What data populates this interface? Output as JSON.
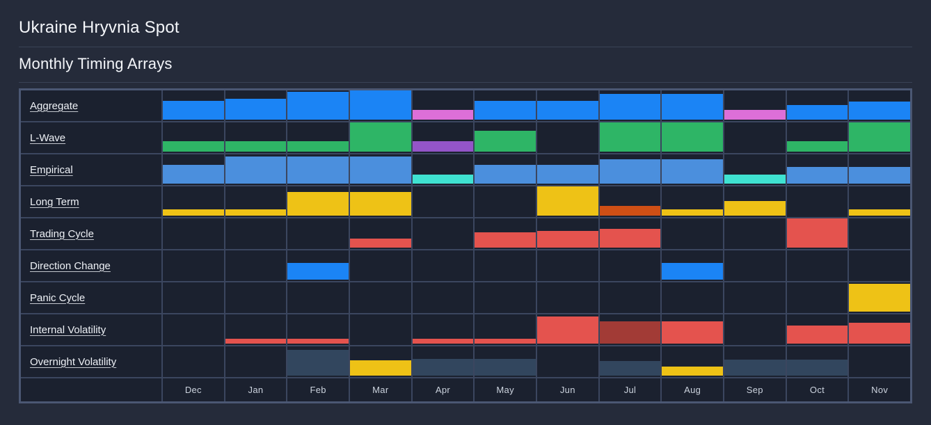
{
  "header": {
    "title": "Ukraine Hryvnia Spot",
    "subtitle": "Monthly Timing Arrays"
  },
  "chart_data": {
    "type": "heatmap",
    "title": "Ukraine Hryvnia Spot",
    "subtitle": "Monthly Timing Arrays",
    "categories": [
      "Dec",
      "Jan",
      "Feb",
      "Mar",
      "Apr",
      "May",
      "Jun",
      "Jul",
      "Aug",
      "Sep",
      "Oct",
      "Nov"
    ],
    "value_format": "bar height as fraction of row height (0-1), anchored to cell bottom",
    "palette": {
      "blue": "#1b84f5",
      "pink": "#dd6fd8",
      "green": "#2eb566",
      "purple": "#9455c8",
      "lightblue": "#4b8fdd",
      "cyan": "#3fe2d1",
      "yellow": "#eec216",
      "orange": "#cf4f15",
      "red": "#e4534e",
      "darkred": "#a23b36",
      "slate": "#32465e"
    },
    "rows": [
      {
        "label": "Aggregate",
        "values": [
          0.62,
          0.68,
          0.92,
          1,
          0.32,
          0.62,
          0.62,
          0.84,
          0.84,
          0.32,
          0.48,
          0.58
        ],
        "colors": [
          "blue",
          "blue",
          "blue",
          "blue",
          "pink",
          "blue",
          "blue",
          "blue",
          "blue",
          "pink",
          "blue",
          "blue"
        ]
      },
      {
        "label": "L-Wave",
        "values": [
          0.35,
          0.35,
          0.35,
          1,
          0.35,
          0.68,
          0,
          0.95,
          0.95,
          0,
          0.35,
          1
        ],
        "colors": [
          "green",
          "green",
          "green",
          "green",
          "purple",
          "green",
          null,
          "green",
          "green",
          null,
          "green",
          "green"
        ]
      },
      {
        "label": "Empirical",
        "values": [
          0.62,
          0.88,
          0.88,
          0.88,
          0.3,
          0.62,
          0.62,
          0.8,
          0.8,
          0.3,
          0.55,
          0.55
        ],
        "colors": [
          "lightblue",
          "lightblue",
          "lightblue",
          "lightblue",
          "cyan",
          "lightblue",
          "lightblue",
          "lightblue",
          "lightblue",
          "cyan",
          "lightblue",
          "lightblue"
        ]
      },
      {
        "label": "Long Term",
        "values": [
          0.2,
          0.2,
          0.78,
          0.78,
          0,
          0,
          1,
          0.32,
          0.2,
          0.48,
          0,
          0.2
        ],
        "colors": [
          "yellow",
          "yellow",
          "yellow",
          "yellow",
          null,
          null,
          "yellow",
          "orange",
          "yellow",
          "yellow",
          null,
          "yellow"
        ]
      },
      {
        "label": "Trading Cycle",
        "values": [
          0,
          0,
          0,
          0.3,
          0,
          0.5,
          0.55,
          0.62,
          0,
          0,
          0.95,
          0
        ],
        "colors": [
          null,
          null,
          null,
          "red",
          null,
          "red",
          "red",
          "red",
          null,
          null,
          "red",
          null
        ]
      },
      {
        "label": "Direction Change",
        "values": [
          0,
          0,
          0.55,
          0,
          0,
          0,
          0,
          0,
          0.55,
          0,
          0,
          0
        ],
        "colors": [
          null,
          null,
          "blue",
          null,
          null,
          null,
          null,
          null,
          "blue",
          null,
          null,
          null
        ]
      },
      {
        "label": "Panic Cycle",
        "values": [
          0,
          0,
          0,
          0,
          0,
          0,
          0,
          0,
          0,
          0,
          0,
          0.92
        ],
        "colors": [
          null,
          null,
          null,
          null,
          null,
          null,
          null,
          null,
          null,
          null,
          null,
          "yellow"
        ]
      },
      {
        "label": "Internal Volatility",
        "values": [
          0,
          0.16,
          0.16,
          0,
          0.16,
          0.16,
          0.88,
          0.72,
          0.72,
          0,
          0.6,
          0.68
        ],
        "colors": [
          null,
          "red",
          "red",
          null,
          "red",
          "red",
          "red",
          "darkred",
          "red",
          null,
          "red",
          "red"
        ]
      },
      {
        "label": "Overnight Volatility",
        "values": [
          0,
          0,
          0.85,
          0.5,
          0.55,
          0.55,
          0,
          0.48,
          0.3,
          0.52,
          0.52,
          0
        ],
        "colors": [
          null,
          null,
          "slate",
          "yellow",
          "slate",
          "slate",
          null,
          "slate",
          "yellow",
          "slate",
          "slate",
          null
        ]
      }
    ]
  }
}
